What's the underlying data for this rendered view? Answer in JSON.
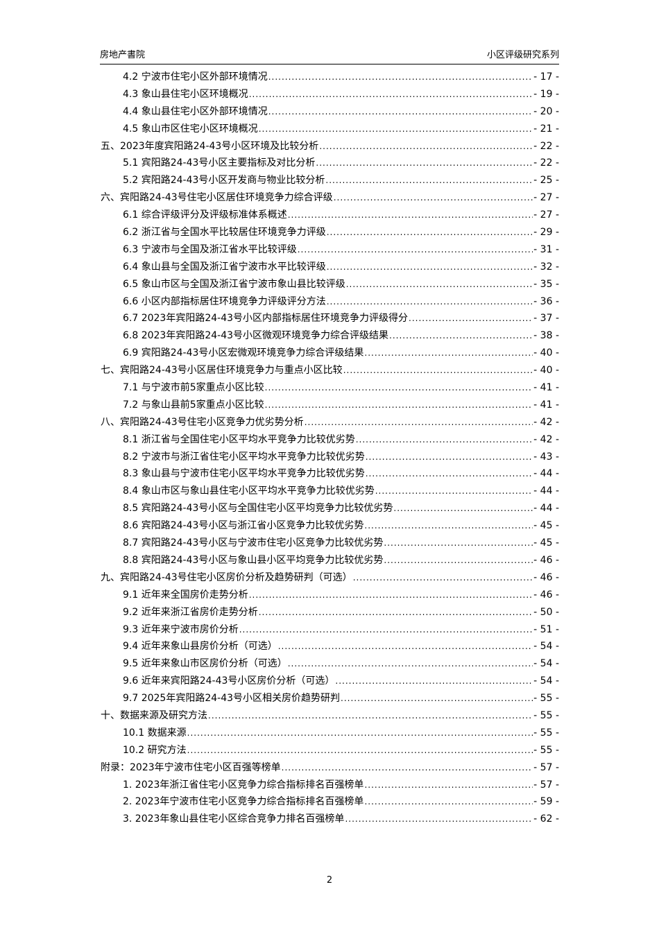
{
  "header": {
    "left": "房地产書院",
    "right": "小区评级研究系列"
  },
  "toc": [
    {
      "level": 2,
      "title": "4.2 宁波市住宅小区外部环境情况",
      "page": "- 17 -"
    },
    {
      "level": 2,
      "title": "4.3 象山县住宅小区环境概况",
      "page": "- 19 -"
    },
    {
      "level": 2,
      "title": "4.4 象山县住宅小区外部环境情况",
      "page": "- 20 -"
    },
    {
      "level": 2,
      "title": "4.5 象山市区住宅小区环境概况",
      "page": "- 21 -"
    },
    {
      "level": 1,
      "title": "五、2023年度宾阳路24-43号小区环境及比较分析",
      "page": "- 22 -"
    },
    {
      "level": 2,
      "title": "5.1 宾阳路24-43号小区主要指标及对比分析",
      "page": "- 22 -"
    },
    {
      "level": 2,
      "title": "5.2 宾阳路24-43号小区开发商与物业比较分析",
      "page": "- 25 -"
    },
    {
      "level": 1,
      "title": "六、宾阳路24-43号住宅小区居住环境竞争力综合评级",
      "page": "- 27 -"
    },
    {
      "level": 2,
      "title": "6.1 综合评级评分及评级标准体系概述",
      "page": "- 27 -"
    },
    {
      "level": 2,
      "title": "6.2 浙江省与全国水平比较居住环境竞争力评级",
      "page": "- 29 -"
    },
    {
      "level": 2,
      "title": "6.3 宁波市与全国及浙江省水平比较评级",
      "page": "- 31 -"
    },
    {
      "level": 2,
      "title": "6.4 象山县与全国及浙江省宁波市水平比较评级",
      "page": "- 32 -"
    },
    {
      "level": 2,
      "title": "6.5 象山市区与全国及浙江省宁波市象山县比较评级",
      "page": "- 35 -"
    },
    {
      "level": 2,
      "title": "6.6 小区内部指标居住环境竞争力评级评分方法",
      "page": "- 36 -"
    },
    {
      "level": 2,
      "title": "6.7 2023年宾阳路24-43号小区内部指标居住环境竞争力评级得分",
      "page": "- 37 -"
    },
    {
      "level": 2,
      "title": "6.8 2023年宾阳路24-43号小区微观环境竞争力综合评级结果",
      "page": "- 38 -"
    },
    {
      "level": 2,
      "title": "6.9 宾阳路24-43号小区宏微观环境竞争力综合评级结果",
      "page": "- 40 -"
    },
    {
      "level": 1,
      "title": "七、宾阳路24-43号小区居住环境竞争力与重点小区比较",
      "page": "- 40 -"
    },
    {
      "level": 2,
      "title": "7.1 与宁波市前5家重点小区比较",
      "page": "- 41 -"
    },
    {
      "level": 2,
      "title": "7.2 与象山县前5家重点小区比较",
      "page": "- 41 -"
    },
    {
      "level": 1,
      "title": "八、宾阳路24-43号住宅小区竞争力优劣势分析",
      "page": "- 42 -"
    },
    {
      "level": 2,
      "title": "8.1 浙江省与全国住宅小区平均水平竞争力比较优劣势",
      "page": "- 42 -"
    },
    {
      "level": 2,
      "title": "8.2 宁波市与浙江省住宅小区平均水平竞争力比较优劣势",
      "page": "- 43 -"
    },
    {
      "level": 2,
      "title": "8.3 象山县与宁波市住宅小区平均水平竞争力比较优劣势",
      "page": "- 44 -"
    },
    {
      "level": 2,
      "title": "8.4 象山市区与象山县住宅小区平均水平竞争力比较优劣势",
      "page": "- 44 -"
    },
    {
      "level": 2,
      "title": "8.5 宾阳路24-43号小区与全国住宅小区平均竞争力比较优劣势",
      "page": "- 44 -"
    },
    {
      "level": 2,
      "title": "8.6 宾阳路24-43号小区与浙江省小区竞争力比较优劣势",
      "page": "- 45 -"
    },
    {
      "level": 2,
      "title": "8.7 宾阳路24-43号小区与宁波市住宅小区竞争力比较优劣势",
      "page": "- 45 -"
    },
    {
      "level": 2,
      "title": "8.8 宾阳路24-43号小区与象山县小区平均竞争力比较优劣势",
      "page": "- 46 -"
    },
    {
      "level": 1,
      "title": "九、宾阳路24-43号住宅小区房价分析及趋势研判（可选）",
      "page": "- 46 -"
    },
    {
      "level": 2,
      "title": "9.1 近年来全国房价走势分析",
      "page": "- 46 -"
    },
    {
      "level": 2,
      "title": "9.2 近年来浙江省房价走势分析",
      "page": "- 50 -"
    },
    {
      "level": 2,
      "title": "9.3 近年来宁波市房价分析",
      "page": "- 51 -"
    },
    {
      "level": 2,
      "title": "9.4 近年来象山县房价分析（可选）",
      "page": "- 54 -"
    },
    {
      "level": 2,
      "title": "9.5 近年来象山市区房价分析（可选）",
      "page": "- 54 -"
    },
    {
      "level": 2,
      "title": "9.6 近年来宾阳路24-43号小区房价分析（可选）",
      "page": "- 54 -"
    },
    {
      "level": 2,
      "title": "9.7 2025年宾阳路24-43号小区相关房价趋势研判",
      "page": "- 55 -"
    },
    {
      "level": 1,
      "title": "十、数据来源及研究方法",
      "page": "- 55 -"
    },
    {
      "level": 2,
      "title": "10.1 数据来源",
      "page": "- 55 -"
    },
    {
      "level": 2,
      "title": "10.2 研究方法",
      "page": "- 55 -"
    },
    {
      "level": 1,
      "title": "附录：2023年宁波市住宅小区百强等榜单",
      "page": "- 57 -"
    },
    {
      "level": 2,
      "title": "1. 2023年浙江省住宅小区竞争力综合指标排名百强榜单",
      "page": "- 57 -"
    },
    {
      "level": 2,
      "title": "2. 2023年宁波市住宅小区竞争力综合指标排名百强榜单",
      "page": "- 59 -"
    },
    {
      "level": 2,
      "title": "3. 2023年象山县住宅小区综合竞争力排名百强榜单",
      "page": "- 62 -"
    }
  ],
  "footer": {
    "page_number": "2"
  }
}
